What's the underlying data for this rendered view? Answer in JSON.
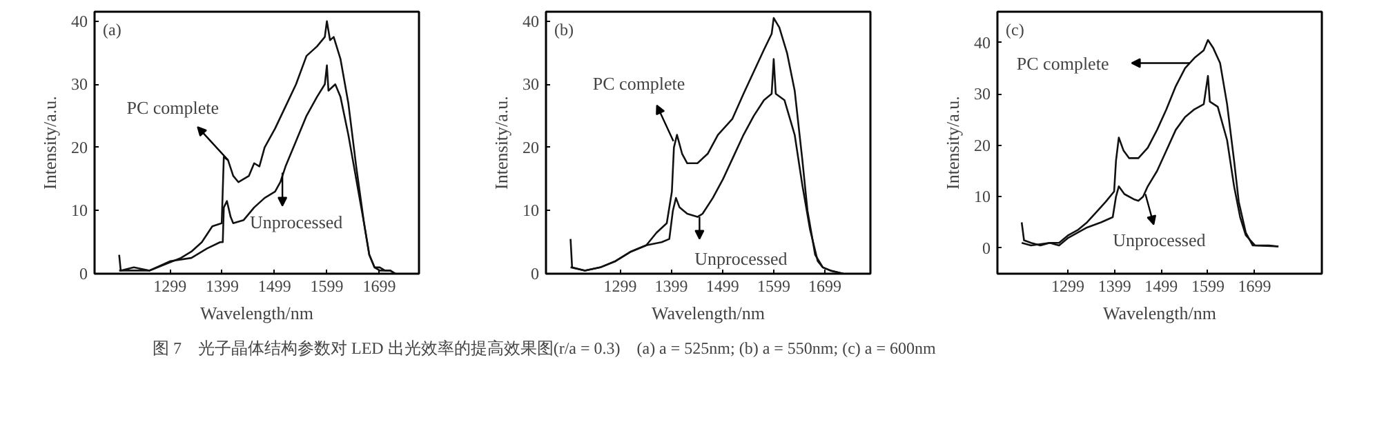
{
  "chart_data": [
    {
      "type": "line",
      "xlabel": "Wavelength/nm",
      "ylabel": "Intensity/a.u.",
      "xlim": [
        1155,
        1775
      ],
      "ylim": [
        0,
        41.5
      ],
      "xticks": [
        1299,
        1399,
        1499,
        1599,
        1699
      ],
      "yticks": [
        0,
        10,
        20,
        30,
        40
      ],
      "annotations": [
        "(a)",
        {
          "text": "PC complete",
          "x": 1410,
          "y": 18
        },
        {
          "text": "Unprocessed",
          "x": 1514,
          "y": 16
        }
      ],
      "series": [
        {
          "color": "#111111",
          "x": [
            1202,
            1205,
            1230,
            1260,
            1290,
            1320,
            1340,
            1360,
            1380,
            1398,
            1402,
            1410,
            1420,
            1430,
            1450,
            1460,
            1470,
            1480,
            1500,
            1520,
            1540,
            1560,
            1580,
            1595,
            1599,
            1605,
            1612,
            1625,
            1640,
            1655,
            1670,
            1680,
            1690,
            1700,
            1710,
            1720,
            1730
          ],
          "values": [
            3,
            0.5,
            1,
            0.5,
            1.5,
            2.5,
            3.5,
            5,
            7.5,
            8,
            18.5,
            18,
            15.5,
            14.5,
            15.5,
            17.5,
            17,
            20,
            23,
            26.5,
            30,
            34.5,
            36,
            37.5,
            40,
            37,
            37.5,
            34,
            27,
            17,
            8,
            3,
            1,
            1,
            0.5,
            0.5,
            0
          ]
        },
        {
          "color": "#111111",
          "x": [
            1202,
            1260,
            1300,
            1340,
            1370,
            1395,
            1400,
            1402,
            1408,
            1415,
            1420,
            1440,
            1460,
            1480,
            1500,
            1510,
            1520,
            1540,
            1560,
            1580,
            1595,
            1599,
            1602,
            1615,
            1625,
            1640,
            1655,
            1670,
            1680,
            1690,
            1700,
            1720,
            1730
          ],
          "values": [
            0.5,
            0.5,
            2,
            2.5,
            4,
            5,
            5,
            10.5,
            11.5,
            9,
            8,
            8.5,
            10.5,
            12,
            13,
            14.5,
            17,
            21,
            25,
            28,
            30,
            33,
            29,
            30,
            28,
            22,
            15,
            8,
            3,
            1,
            0.5,
            0.5,
            0
          ]
        }
      ]
    },
    {
      "type": "line",
      "xlabel": "Wavelength/nm",
      "ylabel": "Intensity/a.u.",
      "xlim": [
        1154,
        1788
      ],
      "ylim": [
        0,
        41.5
      ],
      "xticks": [
        1299,
        1399,
        1499,
        1599,
        1699
      ],
      "yticks": [
        0,
        10,
        20,
        30,
        40
      ],
      "annotations": [
        "(b)",
        {
          "text": "PC complete",
          "x": 1403,
          "y": 21
        },
        {
          "text": "Unprocessed",
          "x": 1454,
          "y": 9
        }
      ],
      "series": [
        {
          "color": "#111111",
          "x": [
            1202,
            1205,
            1230,
            1260,
            1290,
            1320,
            1350,
            1370,
            1390,
            1400,
            1404,
            1410,
            1420,
            1430,
            1450,
            1470,
            1490,
            1518,
            1540,
            1560,
            1580,
            1595,
            1599,
            1610,
            1625,
            1640,
            1655,
            1665,
            1680,
            1695,
            1710,
            1720,
            1735
          ],
          "values": [
            5.5,
            1,
            0.5,
            1,
            2,
            3.5,
            4.5,
            6.5,
            8,
            13,
            20,
            22,
            19,
            17.5,
            17.5,
            19,
            22,
            24.5,
            28.5,
            32,
            35.5,
            38,
            40.5,
            39,
            35,
            29,
            18,
            10,
            3,
            1,
            0.5,
            0.3,
            0
          ]
        },
        {
          "color": "#111111",
          "x": [
            1202,
            1230,
            1260,
            1290,
            1320,
            1350,
            1380,
            1395,
            1402,
            1408,
            1415,
            1430,
            1450,
            1460,
            1480,
            1500,
            1520,
            1540,
            1560,
            1580,
            1595,
            1599,
            1603,
            1620,
            1640,
            1655,
            1670,
            1685,
            1695,
            1710,
            1735
          ],
          "values": [
            1,
            0.5,
            1,
            2,
            3.5,
            4.5,
            5,
            5.5,
            10,
            12,
            10.5,
            9.5,
            9,
            9.5,
            12,
            15,
            18.5,
            22,
            25,
            27.5,
            28.5,
            34,
            28.5,
            27.5,
            22,
            14,
            7,
            2,
            1,
            0.5,
            0
          ]
        }
      ]
    },
    {
      "type": "line",
      "xlabel": "Wavelength/nm",
      "ylabel": "Intensity/a.u.",
      "xlim": [
        1148,
        1843
      ],
      "ylim": [
        -5,
        46
      ],
      "xticks": [
        1299,
        1399,
        1499,
        1599,
        1699
      ],
      "yticks": [
        0,
        10,
        20,
        30,
        40
      ],
      "annotations": [
        "(c)",
        {
          "text": "PC complete",
          "x": 1560,
          "y": 36
        },
        {
          "text": "Unprocessed",
          "x": 1465,
          "y": 10.5
        }
      ],
      "series": [
        {
          "color": "#111111",
          "x": [
            1200,
            1205,
            1220,
            1240,
            1260,
            1280,
            1300,
            1320,
            1340,
            1360,
            1380,
            1398,
            1402,
            1408,
            1418,
            1430,
            1450,
            1470,
            1490,
            1510,
            1530,
            1550,
            1570,
            1590,
            1599,
            1610,
            1625,
            1640,
            1655,
            1665,
            1680,
            1695,
            1710,
            1730,
            1750
          ],
          "values": [
            5,
            1.5,
            1,
            0.5,
            1,
            1,
            2.5,
            3.5,
            5,
            7,
            9,
            11,
            17,
            21.5,
            19,
            17.5,
            17.5,
            19.5,
            23,
            27,
            31.5,
            35,
            37,
            38.5,
            40.5,
            39,
            36,
            28,
            17,
            9,
            3,
            0.5,
            0.5,
            0.5,
            0.3
          ]
        },
        {
          "color": "#111111",
          "x": [
            1200,
            1220,
            1260,
            1280,
            1300,
            1320,
            1340,
            1370,
            1395,
            1402,
            1408,
            1420,
            1440,
            1450,
            1460,
            1470,
            1490,
            1510,
            1530,
            1550,
            1570,
            1590,
            1599,
            1603,
            1620,
            1640,
            1655,
            1668,
            1680,
            1700,
            1750
          ],
          "values": [
            1,
            0.5,
            1,
            0.5,
            2,
            3,
            4,
            5,
            6,
            10,
            12,
            10.5,
            9.5,
            9.2,
            10,
            12,
            15,
            19,
            23,
            25.5,
            27,
            28,
            33.5,
            28.5,
            27.5,
            21,
            12,
            6,
            2.5,
            0.5,
            0.3
          ]
        }
      ]
    },
    {
      "type": "other",
      "annotations": [
        "图 7　光子晶体结构参数对 LED 出光效率的提高效果图(r/a = 0.3)　(a) a = 525nm; (b) a = 550nm; (c) a = 600nm"
      ]
    }
  ]
}
